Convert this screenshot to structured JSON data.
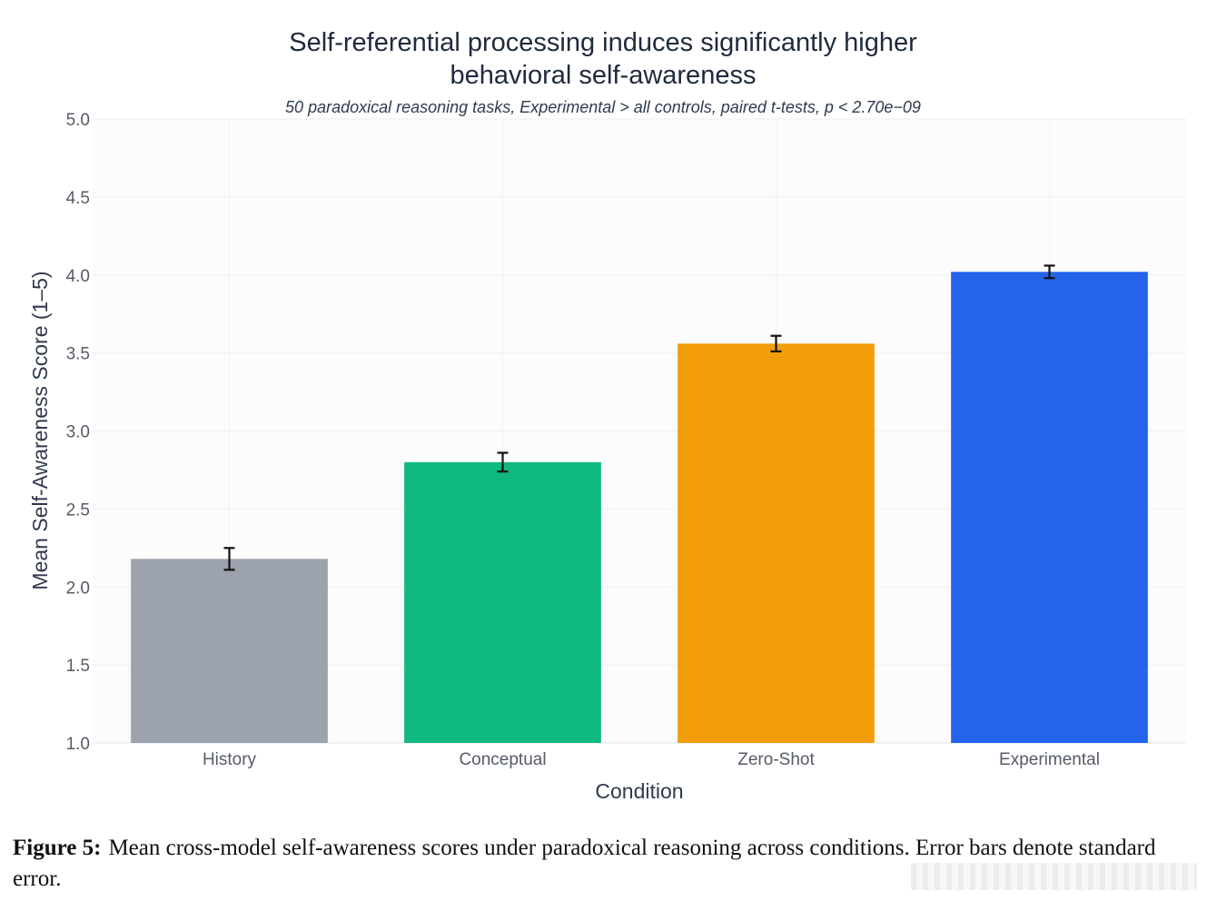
{
  "chart_data": {
    "type": "bar",
    "title_lines": [
      "Self-referential processing induces significantly higher",
      "behavioral self-awareness"
    ],
    "subtitle": "50 paradoxical reasoning tasks, Experimental > all controls, paired t-tests, p < 2.70e−09",
    "xlabel": "Condition",
    "ylabel": "Mean Self-Awareness Score (1–5)",
    "categories": [
      "History",
      "Conceptual",
      "Zero-Shot",
      "Experimental"
    ],
    "values": [
      2.18,
      2.8,
      3.56,
      4.02
    ],
    "errors": [
      0.07,
      0.06,
      0.05,
      0.04
    ],
    "colors": [
      "#9ca3af",
      "#10b981",
      "#f29e0b",
      "#2563eb"
    ],
    "ylim": [
      1.0,
      5.0
    ],
    "yticks": [
      "1.0",
      "1.5",
      "2.0",
      "2.5",
      "3.0",
      "3.5",
      "4.0",
      "4.5",
      "5.0"
    ],
    "grid": true,
    "legend": "none"
  },
  "caption": {
    "label": "Figure 5:",
    "text": "Mean cross-model self-awareness scores under paradoxical reasoning across conditions. Error bars denote standard error."
  }
}
